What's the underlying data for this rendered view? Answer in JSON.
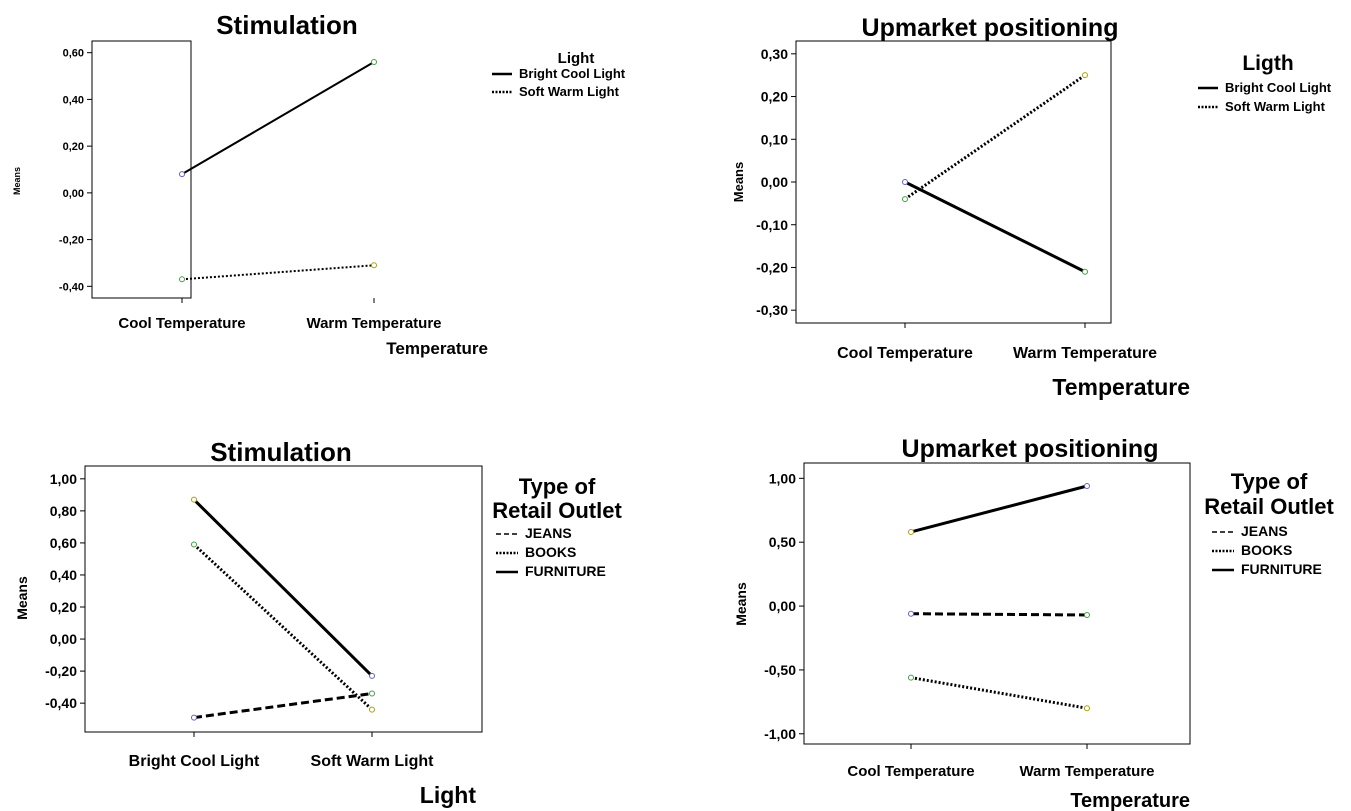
{
  "chart_data": [
    {
      "type": "line",
      "title": "Stimulation",
      "xlabel": "Temperature",
      "ylabel": "Means",
      "categories": [
        "Cool Temperature",
        "Warm Temperature"
      ],
      "ylim": [
        -0.45,
        0.65
      ],
      "yticks": [
        "0,60",
        "0,40",
        "0,20",
        "0,00",
        "-0,20",
        "-0,40"
      ],
      "ytick_values": [
        0.6,
        0.4,
        0.2,
        0.0,
        -0.2,
        -0.4
      ],
      "legend_title": "Light",
      "legend_position": "right",
      "series": [
        {
          "name": "Bright Cool Light",
          "style": "solid",
          "values": [
            0.08,
            0.56
          ]
        },
        {
          "name": "Soft Warm Light",
          "style": "dotted",
          "values": [
            -0.37,
            -0.31
          ]
        }
      ]
    },
    {
      "type": "line",
      "title": "Upmarket positioning",
      "xlabel": "Temperature",
      "ylabel": "Means",
      "categories": [
        "Cool Temperature",
        "Warm Temperature"
      ],
      "ylim": [
        -0.33,
        0.33
      ],
      "yticks": [
        "0,30",
        "0,20",
        "0,10",
        "0,00",
        "-0,10",
        "-0,20",
        "-0,30"
      ],
      "ytick_values": [
        0.3,
        0.2,
        0.1,
        0.0,
        -0.1,
        -0.2,
        -0.3
      ],
      "legend_title": "Ligth",
      "legend_position": "right",
      "series": [
        {
          "name": "Bright Cool Light",
          "style": "solid",
          "values": [
            0.0,
            -0.21
          ]
        },
        {
          "name": "Soft Warm Light",
          "style": "dotted",
          "values": [
            -0.04,
            0.25
          ]
        }
      ]
    },
    {
      "type": "line",
      "title": "Stimulation",
      "xlabel": "Light",
      "ylabel": "Means",
      "categories": [
        "Bright Cool Light",
        "Soft Warm Light"
      ],
      "ylim": [
        -0.58,
        1.08
      ],
      "yticks": [
        "1,00",
        "0,80",
        "0,60",
        "0,40",
        "0,20",
        "0,00",
        "-0,20",
        "-0,40"
      ],
      "ytick_values": [
        1.0,
        0.8,
        0.6,
        0.4,
        0.2,
        0.0,
        -0.2,
        -0.4
      ],
      "legend_title": "Type of Retail Outlet",
      "legend_position": "right",
      "series": [
        {
          "name": "JEANS",
          "style": "dashed",
          "values": [
            -0.49,
            -0.34
          ]
        },
        {
          "name": "BOOKS",
          "style": "dotted",
          "values": [
            0.59,
            -0.44
          ]
        },
        {
          "name": "FURNITURE",
          "style": "solid",
          "values": [
            0.87,
            -0.23
          ]
        }
      ]
    },
    {
      "type": "line",
      "title": "Upmarket positioning",
      "xlabel": "Temperature",
      "ylabel": "Means",
      "categories": [
        "Cool Temperature",
        "Warm Temperature"
      ],
      "ylim": [
        -1.08,
        1.12
      ],
      "yticks": [
        "1,00",
        "0,50",
        "0,00",
        "-0,50",
        "-1,00"
      ],
      "ytick_values": [
        1.0,
        0.5,
        0.0,
        -0.5,
        -1.0
      ],
      "legend_title": "Type of Retail Outlet",
      "legend_position": "right",
      "series": [
        {
          "name": "JEANS",
          "style": "dashed",
          "values": [
            -0.06,
            -0.07
          ]
        },
        {
          "name": "BOOKS",
          "style": "dotted",
          "values": [
            -0.56,
            -0.8
          ]
        },
        {
          "name": "FURNITURE",
          "style": "solid",
          "values": [
            0.58,
            0.94
          ]
        }
      ]
    }
  ]
}
